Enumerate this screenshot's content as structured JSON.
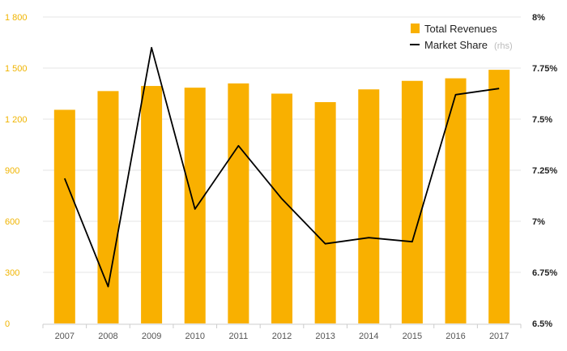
{
  "chart_data": {
    "type": "bar",
    "categories": [
      "2007",
      "2008",
      "2009",
      "2010",
      "2011",
      "2012",
      "2013",
      "2014",
      "2015",
      "2016",
      "2017"
    ],
    "series": [
      {
        "name": "Total Revenues",
        "type": "bar",
        "axis": "left",
        "color": "#f9b000",
        "values": [
          1255,
          1365,
          1395,
          1385,
          1410,
          1350,
          1300,
          1375,
          1425,
          1440,
          1490
        ]
      },
      {
        "name": "Market Share",
        "legend_suffix": "(rhs)",
        "type": "line",
        "axis": "right",
        "color": "#000000",
        "values": [
          7.21,
          6.68,
          7.85,
          7.06,
          7.37,
          7.11,
          6.89,
          6.92,
          6.9,
          7.62,
          7.65
        ]
      }
    ],
    "ylim": [
      0,
      1800
    ],
    "yticks": [
      0,
      300,
      600,
      900,
      1200,
      1500,
      1800
    ],
    "ytick_labels": [
      "0",
      "300",
      "600",
      "900",
      "1 200",
      "1 500",
      "1 800"
    ],
    "y2lim": [
      6.5,
      8
    ],
    "y2ticks": [
      6.5,
      6.75,
      7,
      7.25,
      7.5,
      7.75,
      8
    ],
    "y2tick_labels": [
      "6.5%",
      "6.75%",
      "7%",
      "7.25%",
      "7.5%",
      "7.75%",
      "8%"
    ],
    "grid": true,
    "legend_position": "top-right",
    "colors": {
      "bar": "#f9b000",
      "line": "#000000",
      "left_axis_text": "#f0b400",
      "grid": "#e6e6e6"
    }
  }
}
